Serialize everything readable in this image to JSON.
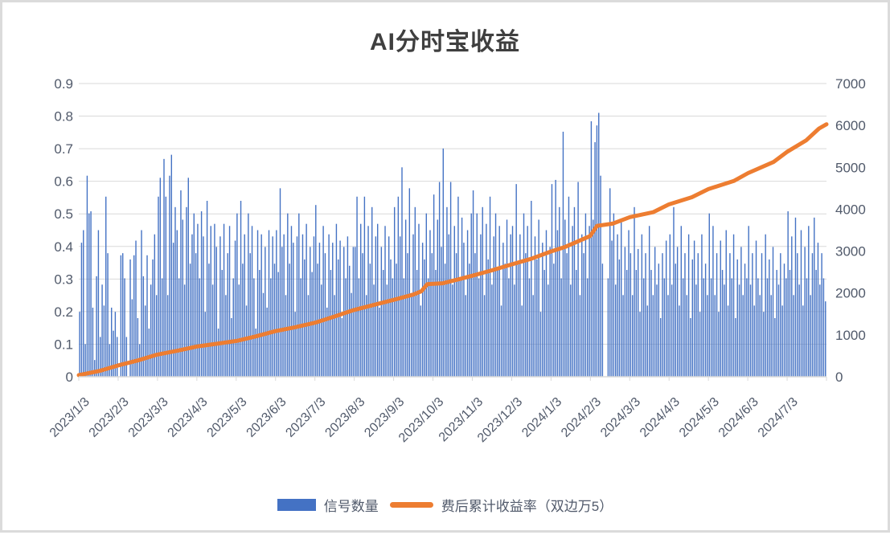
{
  "page": {
    "background": "#FFFFFF",
    "frame_border_color": "#DBDBDB"
  },
  "chart_data": {
    "type": "combo",
    "title": "AI分时宝收益",
    "title_color": "#3F3F3F",
    "axis_label_color": "#515A6B",
    "grid": {
      "horizontal": true,
      "color": "#D9D9D9"
    },
    "x_axis": {
      "label_rotation_deg": -45,
      "labels": [
        "2023/1/3",
        "2023/2/3",
        "2023/3/3",
        "2023/4/3",
        "2023/5/3",
        "2023/6/3",
        "2023/7/3",
        "2023/8/3",
        "2023/9/3",
        "2023/10/3",
        "2023/11/3",
        "2023/12/3",
        "2024/1/3",
        "2024/2/3",
        "2024/3/3",
        "2024/4/3",
        "2024/5/3",
        "2024/6/3",
        "2024/7/3"
      ]
    },
    "y_axis_left": {
      "min": 0,
      "max": 0.9,
      "step": 0.1,
      "tick_labels": [
        "0",
        "0.1",
        "0.2",
        "0.3",
        "0.4",
        "0.5",
        "0.6",
        "0.7",
        "0.8",
        "0.9"
      ]
    },
    "y_axis_right": {
      "min": 0,
      "max": 7000,
      "step": 1000,
      "tick_labels": [
        "0",
        "1000",
        "2000",
        "3000",
        "4000",
        "5000",
        "6000",
        "7000"
      ]
    },
    "legend": {
      "position": "bottom",
      "items": [
        "信号数量",
        "费后累计收益率（双边万5）"
      ]
    },
    "series": [
      {
        "name": "信号数量",
        "type": "bar",
        "axis": "right",
        "color": "#4472C4",
        "values": [
          1550,
          3200,
          3500,
          780,
          4800,
          3900,
          3950,
          1650,
          400,
          2400,
          3500,
          950,
          2200,
          1700,
          4300,
          2950,
          780,
          1650,
          1100,
          1550,
          950,
          0,
          2900,
          2950,
          2350,
          950,
          0,
          2800,
          1850,
          2900,
          3250,
          1400,
          780,
          3500,
          2400,
          1700,
          2900,
          1150,
          2200,
          2800,
          3400,
          1950,
          4300,
          4750,
          2350,
          5200,
          4300,
          1950,
          4800,
          5300,
          3200,
          4050,
          3500,
          2350,
          4450,
          3750,
          2200,
          4050,
          4750,
          2700,
          3400,
          3900,
          2950,
          3650,
          2350,
          3950,
          3350,
          1550,
          4200,
          2700,
          3600,
          2200,
          3650,
          3100,
          1150,
          3350,
          2550,
          3650,
          1950,
          2950,
          3600,
          1400,
          2350,
          3250,
          3900,
          2200,
          4200,
          2700,
          3400,
          1700,
          3900,
          2950,
          3600,
          2350,
          1150,
          3500,
          2550,
          3400,
          2000,
          3100,
          1650,
          3500,
          2350,
          3350,
          2700,
          3500,
          2500,
          4500,
          3100,
          3400,
          1950,
          3900,
          2700,
          3600,
          3200,
          1550,
          3350,
          3900,
          2350,
          3400,
          2800,
          3650,
          1950,
          3100,
          2500,
          3350,
          4100,
          2700,
          3200,
          2200,
          3600,
          2950,
          1650,
          3400,
          2550,
          3200,
          1950,
          3650,
          2800,
          3250,
          1400,
          3100,
          2350,
          3350,
          2650,
          2000,
          3100,
          3100,
          4300,
          2350,
          3650,
          2950,
          4300,
          1950,
          3600,
          2700,
          4050,
          2200,
          3350,
          3650,
          1650,
          3100,
          2550,
          3600,
          2200,
          3350,
          2800,
          2350,
          4050,
          2700,
          4300,
          3350,
          5000,
          2350,
          3750,
          2950,
          4500,
          2000,
          3400,
          4050,
          2550,
          3650,
          1700,
          3200,
          2800,
          3900,
          2350,
          3500,
          2950,
          4350,
          2550,
          3750,
          4650,
          3100,
          5450,
          2700,
          4050,
          3400,
          4650,
          2200,
          3600,
          2950,
          4300,
          2350,
          3800,
          3200,
          1950,
          3500,
          2700,
          3900,
          4450,
          2950,
          3900,
          2350,
          3400,
          4050,
          1950,
          3650,
          2800,
          4300,
          2200,
          3350,
          3900,
          2550,
          3600,
          1700,
          3200,
          2700,
          3750,
          2350,
          3400,
          3600,
          2200,
          4600,
          2700,
          3400,
          1700,
          3900,
          2950,
          3600,
          2350,
          4200,
          1950,
          3350,
          2800,
          3750,
          1550,
          3200,
          2550,
          3500,
          2200,
          3100,
          4600,
          2700,
          4700,
          3500,
          4050,
          2350,
          5850,
          3750,
          2950,
          4300,
          2200,
          3600,
          4050,
          2550,
          4650,
          1950,
          3400,
          2950,
          3900,
          2350,
          3600,
          6100,
          3750,
          5600,
          6000,
          6300,
          4800,
          2700,
          0,
          0,
          2350,
          4500,
          3250,
          3900,
          2200,
          3400,
          2800,
          3750,
          1950,
          3100,
          2550,
          3500,
          2950,
          1950,
          4050,
          2550,
          3050,
          1550,
          3400,
          2350,
          2950,
          1700,
          3600,
          2550,
          1950,
          3100,
          2200,
          2700,
          1400,
          2950,
          2350,
          3250,
          1950,
          3400,
          2200,
          4050,
          2700,
          3100,
          1700,
          3600,
          2350,
          2950,
          1950,
          3400,
          1400,
          2800,
          3250,
          2200,
          2950,
          1550,
          3400,
          2350,
          2700,
          1950,
          3900,
          2350,
          3600,
          1950,
          2950,
          1550,
          3250,
          2550,
          2200,
          3500,
          1700,
          2950,
          2350,
          3400,
          1400,
          2800,
          2200,
          3100,
          1950,
          2700,
          2350,
          3600,
          2200,
          2950,
          1700,
          3250,
          2350,
          1950,
          2950,
          1550,
          3400,
          2350,
          2800,
          1950,
          3100,
          1400,
          2550,
          2200,
          2950,
          1700,
          2700,
          2350,
          3950,
          2550,
          3350,
          1950,
          3800,
          2950,
          2200,
          3500,
          1700,
          3100,
          2350,
          3600,
          1950,
          2950,
          3800,
          2550,
          3200,
          2200,
          2950,
          2350,
          1800
        ]
      },
      {
        "name": "费后累计收益率（双边万5）",
        "type": "line",
        "axis": "left",
        "color": "#ED7D31",
        "stroke_width": 5,
        "points": [
          [
            0.0,
            0.005
          ],
          [
            0.028,
            0.018
          ],
          [
            0.053,
            0.035
          ],
          [
            0.079,
            0.05
          ],
          [
            0.105,
            0.068
          ],
          [
            0.132,
            0.08
          ],
          [
            0.158,
            0.093
          ],
          [
            0.184,
            0.101
          ],
          [
            0.211,
            0.11
          ],
          [
            0.237,
            0.124
          ],
          [
            0.263,
            0.14
          ],
          [
            0.289,
            0.152
          ],
          [
            0.316,
            0.166
          ],
          [
            0.342,
            0.185
          ],
          [
            0.368,
            0.205
          ],
          [
            0.395,
            0.221
          ],
          [
            0.421,
            0.236
          ],
          [
            0.447,
            0.252
          ],
          [
            0.458,
            0.262
          ],
          [
            0.466,
            0.284
          ],
          [
            0.487,
            0.287
          ],
          [
            0.508,
            0.299
          ],
          [
            0.526,
            0.31
          ],
          [
            0.553,
            0.327
          ],
          [
            0.579,
            0.345
          ],
          [
            0.605,
            0.362
          ],
          [
            0.632,
            0.385
          ],
          [
            0.651,
            0.399
          ],
          [
            0.684,
            0.432
          ],
          [
            0.693,
            0.463
          ],
          [
            0.714,
            0.47
          ],
          [
            0.737,
            0.49
          ],
          [
            0.768,
            0.505
          ],
          [
            0.789,
            0.529
          ],
          [
            0.82,
            0.551
          ],
          [
            0.842,
            0.576
          ],
          [
            0.876,
            0.601
          ],
          [
            0.895,
            0.625
          ],
          [
            0.929,
            0.659
          ],
          [
            0.947,
            0.69
          ],
          [
            0.973,
            0.726
          ],
          [
            0.99,
            0.762
          ],
          [
            1.0,
            0.775
          ]
        ]
      }
    ]
  }
}
